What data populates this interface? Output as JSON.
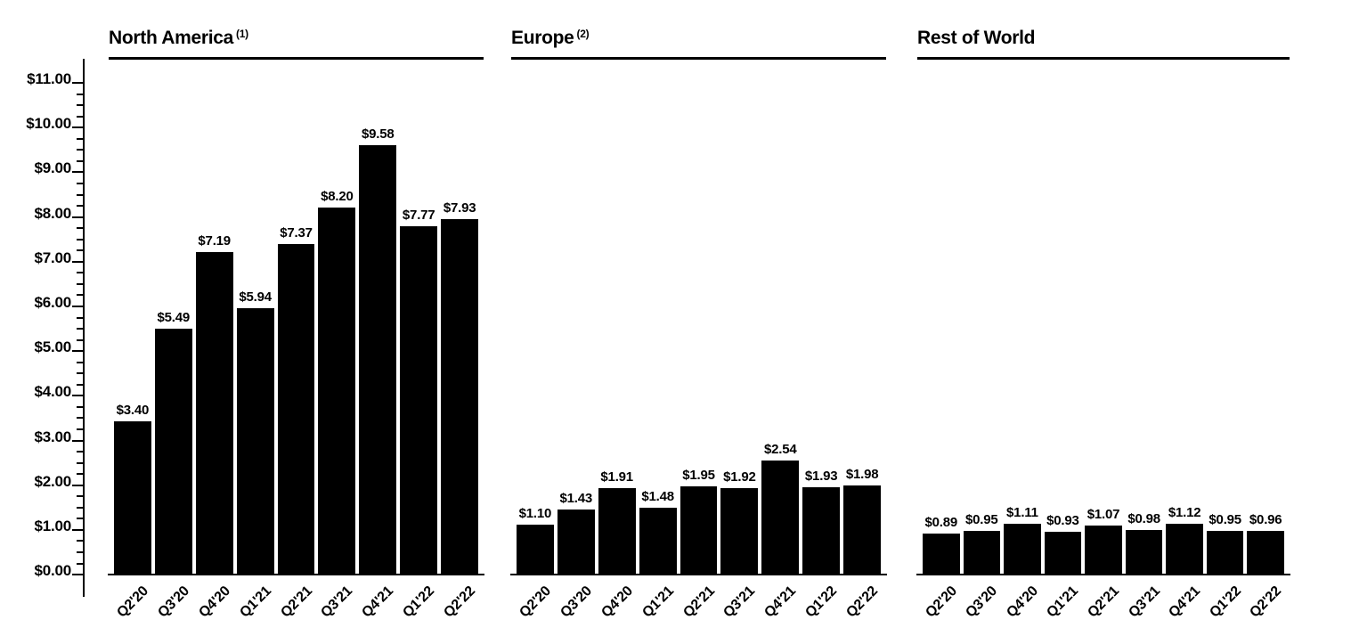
{
  "page": {
    "background_color": "#ffffff",
    "text_color": "#000000"
  },
  "chart_data": [
    {
      "type": "bar",
      "title": "North America",
      "footnote_marker": "(1)",
      "bar_color": "#000000",
      "categories": [
        "Q2'20",
        "Q3'20",
        "Q4'20",
        "Q1'21",
        "Q2'21",
        "Q3'21",
        "Q4'21",
        "Q1'22",
        "Q2'22"
      ],
      "values": [
        3.4,
        5.49,
        7.19,
        5.94,
        7.37,
        8.2,
        9.58,
        7.77,
        7.93
      ],
      "bar_labels": [
        "$3.40",
        "$5.49",
        "$7.19",
        "$5.94",
        "$7.37",
        "$8.20",
        "$9.58",
        "$7.77",
        "$7.93"
      ],
      "x_tick_rotation_deg": 45,
      "legend": "none",
      "y_axis": {
        "visible": true,
        "min": 0,
        "max": 11,
        "major_step": 1,
        "minor_step": 0.25,
        "tick_labels": [
          "$0.00",
          "$1.00",
          "$2.00",
          "$3.00",
          "$4.00",
          "$5.00",
          "$6.00",
          "$7.00",
          "$8.00",
          "$9.00",
          "$10.00",
          "$11.00"
        ]
      }
    },
    {
      "type": "bar",
      "title": "Europe",
      "footnote_marker": "(2)",
      "bar_color": "#000000",
      "categories": [
        "Q2'20",
        "Q3'20",
        "Q4'20",
        "Q1'21",
        "Q2'21",
        "Q3'21",
        "Q4'21",
        "Q1'22",
        "Q2'22"
      ],
      "values": [
        1.1,
        1.43,
        1.91,
        1.48,
        1.95,
        1.92,
        2.54,
        1.93,
        1.98
      ],
      "bar_labels": [
        "$1.10",
        "$1.43",
        "$1.91",
        "$1.48",
        "$1.95",
        "$1.92",
        "$2.54",
        "$1.93",
        "$1.98"
      ],
      "x_tick_rotation_deg": 45,
      "legend": "none",
      "y_axis": {
        "visible": false,
        "min": 0,
        "max": 11
      }
    },
    {
      "type": "bar",
      "title": "Rest of World",
      "footnote_marker": "",
      "bar_color": "#000000",
      "categories": [
        "Q2'20",
        "Q3'20",
        "Q4'20",
        "Q1'21",
        "Q2'21",
        "Q3'21",
        "Q4'21",
        "Q1'22",
        "Q2'22"
      ],
      "values": [
        0.89,
        0.95,
        1.11,
        0.93,
        1.07,
        0.98,
        1.12,
        0.95,
        0.96
      ],
      "bar_labels": [
        "$0.89",
        "$0.95",
        "$1.11",
        "$0.93",
        "$1.07",
        "$0.98",
        "$1.12",
        "$0.95",
        "$0.96"
      ],
      "x_tick_rotation_deg": 45,
      "legend": "none",
      "y_axis": {
        "visible": false,
        "min": 0,
        "max": 11
      }
    }
  ]
}
